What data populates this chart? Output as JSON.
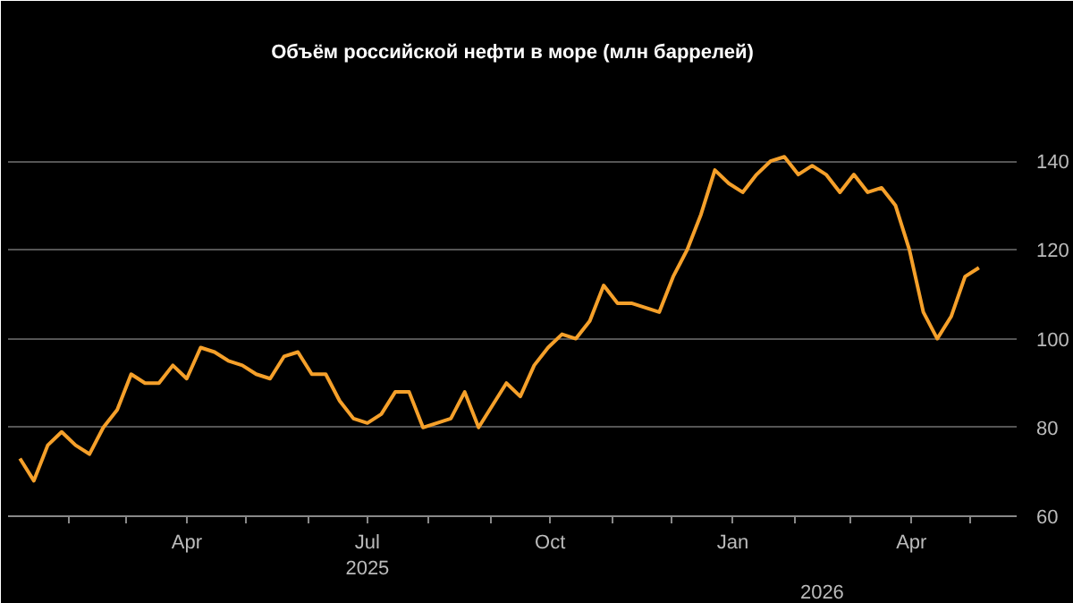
{
  "chart_data": {
    "type": "line",
    "title": "Объём российской нефти в море (млн баррелей)",
    "x": [
      "2025-01-07",
      "2025-01-14",
      "2025-01-21",
      "2025-01-28",
      "2025-02-04",
      "2025-02-11",
      "2025-02-18",
      "2025-02-25",
      "2025-03-04",
      "2025-03-11",
      "2025-03-18",
      "2025-03-25",
      "2025-04-01",
      "2025-04-08",
      "2025-04-15",
      "2025-04-22",
      "2025-04-29",
      "2025-05-06",
      "2025-05-13",
      "2025-05-20",
      "2025-05-27",
      "2025-06-03",
      "2025-06-10",
      "2025-06-17",
      "2025-06-24",
      "2025-07-01",
      "2025-07-08",
      "2025-07-15",
      "2025-07-22",
      "2025-07-29",
      "2025-08-05",
      "2025-08-12",
      "2025-08-19",
      "2025-08-26",
      "2025-09-02",
      "2025-09-09",
      "2025-09-16",
      "2025-09-23",
      "2025-09-30",
      "2025-10-07",
      "2025-10-14",
      "2025-10-21",
      "2025-10-28",
      "2025-11-04",
      "2025-11-11",
      "2025-11-18",
      "2025-11-25",
      "2025-12-02",
      "2025-12-09",
      "2025-12-16",
      "2025-12-23",
      "2025-12-30",
      "2026-01-06",
      "2026-01-13",
      "2026-01-20",
      "2026-01-27",
      "2026-02-03",
      "2026-02-10",
      "2026-02-17",
      "2026-02-24",
      "2026-03-03",
      "2026-03-10",
      "2026-03-17",
      "2026-03-24",
      "2026-03-31",
      "2026-04-07",
      "2026-04-14",
      "2026-04-21",
      "2026-04-28",
      "2026-05-05"
    ],
    "series": [
      {
        "color": "#f5a02a",
        "values": [
          73,
          68,
          76,
          79,
          76,
          74,
          80,
          84,
          92,
          90,
          90,
          94,
          91,
          98,
          97,
          95,
          94,
          92,
          91,
          96,
          97,
          92,
          92,
          86,
          82,
          81,
          83,
          88,
          88,
          80,
          81,
          82,
          88,
          80,
          85,
          90,
          87,
          94,
          98,
          101,
          100,
          104,
          112,
          108,
          108,
          107,
          106,
          114,
          120,
          128,
          138,
          135,
          133,
          137,
          140,
          141,
          137,
          139,
          137,
          133,
          137,
          133,
          134,
          130,
          120,
          106,
          100,
          105,
          114,
          116
        ]
      }
    ],
    "xlim": [
      "2025-01-01",
      "2026-05-24"
    ],
    "xticks": [
      {
        "value": "2025-02-01",
        "label": null
      },
      {
        "value": "2025-03-01",
        "label": null
      },
      {
        "value": "2025-04-01",
        "label": "Apr"
      },
      {
        "value": "2025-05-01",
        "label": null
      },
      {
        "value": "2025-06-01",
        "label": null
      },
      {
        "value": "2025-07-01",
        "label": "Jul\n2025"
      },
      {
        "value": "2025-08-01",
        "label": null
      },
      {
        "value": "2025-09-01",
        "label": null
      },
      {
        "value": "2025-10-01",
        "label": "Oct"
      },
      {
        "value": "2025-11-01",
        "label": null
      },
      {
        "value": "2025-12-01",
        "label": null
      },
      {
        "value": "2026-01-01",
        "label": "Jan"
      },
      {
        "value": "2026-02-01",
        "label": null
      },
      {
        "value": "2026-03-01",
        "label": null
      },
      {
        "value": "2026-04-01",
        "label": "Apr"
      },
      {
        "value": "2026-05-01",
        "label": null
      }
    ],
    "annotations": [
      "2026"
    ],
    "ylim": [
      60,
      160
    ],
    "yticks": [
      60,
      80,
      100,
      120,
      140,
      {
        "value": 160,
        "label": null
      }
    ],
    "grid": "y",
    "marker": "none",
    "line_style": "solid"
  }
}
